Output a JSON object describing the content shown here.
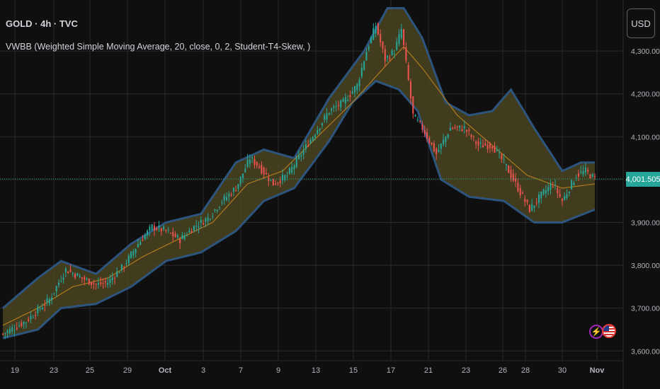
{
  "legend": {
    "title": "GOLD · 4h · TVC",
    "indicator": "VWBB (Weighted Simple Moving Average, 20, close, 0, 2, Student-T4-Skew, )"
  },
  "currency_button": "USD",
  "last_price": "4,001.505",
  "colors": {
    "background": "#0f0f0f",
    "grid": "#2a2a2a",
    "up": "#26a69a",
    "down": "#ef5350",
    "band_fill": "#4a4420",
    "band_edge": "#2e5a8a",
    "basis": "#b07a1e",
    "price_line": "#26a69a"
  },
  "chart_data": {
    "type": "candlestick",
    "title": "GOLD · 4h · TVC",
    "y_ticks": [
      3600,
      3700,
      3800,
      3900,
      4000,
      4100,
      4200,
      4300
    ],
    "y_tick_labels": [
      "3,600.000",
      "3,700.000",
      "3,800.000",
      "3,900.000",
      "4,000.000",
      "4,100.000",
      "4,200.000",
      "4,300.000"
    ],
    "ylim": [
      3575,
      4380
    ],
    "x_tick_labels": [
      "19",
      "23",
      "25",
      "29",
      "Oct",
      "3",
      "7",
      "9",
      "13",
      "15",
      "17",
      "21",
      "23",
      "26",
      "28",
      "30",
      "Nov"
    ],
    "price_key_points": [
      [
        0,
        3640
      ],
      [
        10,
        3670
      ],
      [
        20,
        3720
      ],
      [
        27,
        3790
      ],
      [
        34,
        3770
      ],
      [
        40,
        3755
      ],
      [
        45,
        3760
      ],
      [
        52,
        3800
      ],
      [
        58,
        3850
      ],
      [
        64,
        3890
      ],
      [
        70,
        3880
      ],
      [
        76,
        3860
      ],
      [
        82,
        3890
      ],
      [
        88,
        3910
      ],
      [
        94,
        3950
      ],
      [
        100,
        3980
      ],
      [
        106,
        4050
      ],
      [
        110,
        4030
      ],
      [
        116,
        3990
      ],
      [
        122,
        4010
      ],
      [
        128,
        4060
      ],
      [
        134,
        4110
      ],
      [
        140,
        4160
      ],
      [
        146,
        4180
      ],
      [
        152,
        4220
      ],
      [
        156,
        4300
      ],
      [
        160,
        4360
      ],
      [
        164,
        4280
      ],
      [
        168,
        4300
      ],
      [
        171,
        4350
      ],
      [
        176,
        4150
      ],
      [
        180,
        4120
      ],
      [
        186,
        4060
      ],
      [
        192,
        4120
      ],
      [
        198,
        4120
      ],
      [
        204,
        4080
      ],
      [
        210,
        4080
      ],
      [
        216,
        4030
      ],
      [
        220,
        3990
      ],
      [
        226,
        3930
      ],
      [
        232,
        3970
      ],
      [
        236,
        3990
      ],
      [
        240,
        3950
      ],
      [
        246,
        4010
      ],
      [
        250,
        4020
      ],
      [
        254,
        4001.5
      ]
    ],
    "vwbb_basis_key_points": [
      [
        0,
        3660
      ],
      [
        15,
        3700
      ],
      [
        30,
        3750
      ],
      [
        45,
        3770
      ],
      [
        60,
        3820
      ],
      [
        75,
        3860
      ],
      [
        90,
        3900
      ],
      [
        105,
        3990
      ],
      [
        120,
        4020
      ],
      [
        135,
        4100
      ],
      [
        150,
        4180
      ],
      [
        165,
        4270
      ],
      [
        172,
        4310
      ],
      [
        180,
        4260
      ],
      [
        195,
        4150
      ],
      [
        210,
        4080
      ],
      [
        225,
        4010
      ],
      [
        240,
        3980
      ],
      [
        254,
        3990
      ]
    ],
    "vwbb_upper_key_points": [
      [
        0,
        3700
      ],
      [
        15,
        3770
      ],
      [
        25,
        3810
      ],
      [
        40,
        3780
      ],
      [
        55,
        3850
      ],
      [
        70,
        3900
      ],
      [
        85,
        3920
      ],
      [
        100,
        4040
      ],
      [
        112,
        4070
      ],
      [
        125,
        4050
      ],
      [
        140,
        4190
      ],
      [
        155,
        4300
      ],
      [
        165,
        4400
      ],
      [
        172,
        4400
      ],
      [
        180,
        4330
      ],
      [
        190,
        4180
      ],
      [
        200,
        4150
      ],
      [
        210,
        4160
      ],
      [
        218,
        4210
      ],
      [
        228,
        4120
      ],
      [
        240,
        4020
      ],
      [
        248,
        4040
      ],
      [
        254,
        4040
      ]
    ],
    "vwbb_lower_key_points": [
      [
        0,
        3630
      ],
      [
        15,
        3650
      ],
      [
        25,
        3700
      ],
      [
        40,
        3710
      ],
      [
        55,
        3750
      ],
      [
        70,
        3810
      ],
      [
        85,
        3830
      ],
      [
        100,
        3880
      ],
      [
        112,
        3950
      ],
      [
        125,
        3980
      ],
      [
        140,
        4090
      ],
      [
        150,
        4180
      ],
      [
        160,
        4230
      ],
      [
        170,
        4210
      ],
      [
        178,
        4160
      ],
      [
        188,
        4000
      ],
      [
        200,
        3960
      ],
      [
        215,
        3950
      ],
      [
        228,
        3900
      ],
      [
        240,
        3900
      ],
      [
        254,
        3930
      ]
    ],
    "candle_count": 255,
    "last_price": 4001.505
  }
}
